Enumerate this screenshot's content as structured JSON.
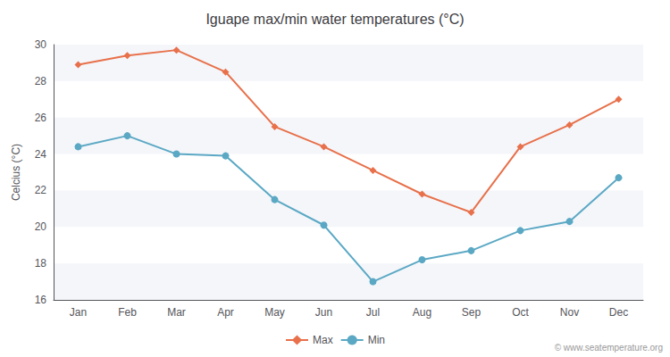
{
  "chart_data": {
    "type": "line",
    "title": "Iguape max/min water temperatures (°C)",
    "y_label": "Celcius (°C)",
    "categories": [
      "Jan",
      "Feb",
      "Mar",
      "Apr",
      "May",
      "Jun",
      "Jul",
      "Aug",
      "Sep",
      "Oct",
      "Nov",
      "Dec"
    ],
    "series": [
      {
        "name": "Max",
        "color": "#e8704a",
        "marker": "diamond",
        "values": [
          28.9,
          29.4,
          29.7,
          28.5,
          25.5,
          24.4,
          23.1,
          21.8,
          20.8,
          24.4,
          25.6,
          27.0
        ]
      },
      {
        "name": "Min",
        "color": "#5ba8c4",
        "marker": "circle",
        "values": [
          24.4,
          25.0,
          24.0,
          23.9,
          21.5,
          20.1,
          17.0,
          18.2,
          18.7,
          19.8,
          20.3,
          22.7
        ]
      }
    ],
    "ylim": [
      16,
      30
    ],
    "yticks": [
      16,
      18,
      20,
      22,
      24,
      26,
      28,
      30
    ],
    "grid": false,
    "legend": "bottom",
    "annotations": [
      "© www.seatemperature.org"
    ]
  }
}
